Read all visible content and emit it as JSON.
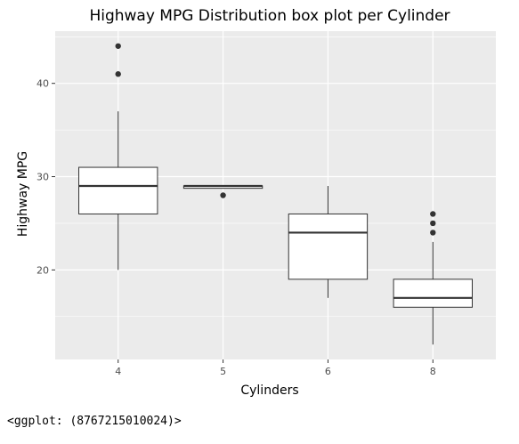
{
  "chart_data": {
    "type": "box",
    "title": "Highway MPG Distribution box plot per Cylinder",
    "xlabel": "Cylinders",
    "ylabel": "Highway MPG",
    "ylim": [
      10.4,
      45.6
    ],
    "yticks": [
      20,
      30,
      40
    ],
    "grid": true,
    "categories": [
      "4",
      "5",
      "6",
      "8"
    ],
    "boxes": [
      {
        "category": "4",
        "whisker_low": 20,
        "q1": 26,
        "median": 29,
        "q3": 31,
        "whisker_high": 37,
        "outliers": [
          41,
          44
        ]
      },
      {
        "category": "5",
        "whisker_low": 28.75,
        "q1": 28.75,
        "median": 29,
        "q3": 29,
        "whisker_high": 29,
        "outliers": [
          28
        ]
      },
      {
        "category": "6",
        "whisker_low": 17,
        "q1": 19,
        "median": 24,
        "q3": 26,
        "whisker_high": 29,
        "outliers": []
      },
      {
        "category": "8",
        "whisker_low": 12,
        "q1": 16,
        "median": 17,
        "q3": 19,
        "whisker_high": 23,
        "outliers": [
          24,
          25,
          26
        ]
      }
    ],
    "colors": {
      "panel": "#ebebeb",
      "grid_major": "#ffffff",
      "box_fill": "#ffffff",
      "box_line": "#333333",
      "point": "#333333",
      "tick_text": "#4d4d4d"
    }
  },
  "caption": "<ggplot: (8767215010024)>"
}
